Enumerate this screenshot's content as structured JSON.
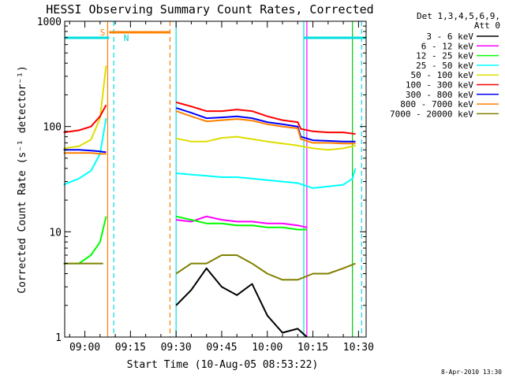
{
  "chart_data": {
    "type": "line",
    "title": "HESSI Observing Summary Count Rates, Corrected",
    "xlabel": "Start Time (10-Aug-05 08:53:22)",
    "ylabel": "Corrected Count Rate (s⁻¹ detector⁻¹)",
    "y_scale": "log",
    "ylim": [
      1,
      1000
    ],
    "xlim": [
      "08:53:22",
      "10:32:30"
    ],
    "x_ticks": [
      "09:00",
      "09:15",
      "09:30",
      "09:45",
      "10:00",
      "10:15",
      "10:30"
    ],
    "y_ticks": [
      "1",
      "10",
      "100",
      "1000"
    ],
    "legend": {
      "placement": "outside-right",
      "header": [
        "Det 1,3,4,5,6,9,",
        "Att 0"
      ]
    },
    "series": [
      {
        "name": "3 - 6 keV",
        "color": "#000000",
        "x": [
          "08:53",
          "09:06",
          "09:30",
          "09:35",
          "09:40",
          "09:45",
          "09:50",
          "09:55",
          "10:00",
          "10:05",
          "10:10",
          "10:13"
        ],
        "values": [
          null,
          null,
          2.0,
          2.8,
          4.5,
          3.0,
          2.5,
          3.2,
          1.6,
          1.1,
          1.2,
          1.0
        ]
      },
      {
        "name": "6 - 12 keV",
        "color": "#ff00ff",
        "x": [
          "09:30",
          "09:35",
          "09:40",
          "09:45",
          "09:50",
          "09:55",
          "10:00",
          "10:05",
          "10:10",
          "10:13"
        ],
        "values": [
          13,
          12.5,
          14,
          13,
          12.5,
          12.5,
          12,
          12,
          11.5,
          11
        ]
      },
      {
        "name": "12 - 25 keV",
        "color": "#00ff00",
        "x": [
          "08:53",
          "08:58",
          "09:02",
          "09:05",
          "09:07",
          "09:30",
          "09:35",
          "09:40",
          "09:45",
          "09:50",
          "09:55",
          "10:00",
          "10:05",
          "10:10",
          "10:13"
        ],
        "values": [
          5,
          5,
          6,
          8,
          14,
          14,
          13,
          12,
          12,
          11.5,
          11.5,
          11,
          11,
          10.5,
          10.5
        ]
      },
      {
        "name": "25 - 50 keV",
        "color": "#00ffff",
        "x": [
          "08:53",
          "08:58",
          "09:02",
          "09:05",
          "09:07",
          "09:30",
          "09:35",
          "09:40",
          "09:45",
          "09:50",
          "09:55",
          "10:00",
          "10:05",
          "10:10",
          "10:15",
          "10:20",
          "10:25",
          "10:28",
          "10:29"
        ],
        "values": [
          28,
          32,
          38,
          55,
          120,
          36,
          35,
          34,
          33,
          33,
          32,
          31,
          30,
          29,
          26,
          27,
          28,
          32,
          40
        ]
      },
      {
        "name": "50 - 100 keV",
        "color": "#dddd00",
        "x": [
          "08:53",
          "08:58",
          "09:02",
          "09:05",
          "09:07",
          "09:30",
          "09:35",
          "09:40",
          "09:45",
          "09:50",
          "09:55",
          "10:00",
          "10:05",
          "10:10",
          "10:15",
          "10:20",
          "10:25",
          "10:29"
        ],
        "values": [
          62,
          65,
          75,
          120,
          380,
          77,
          72,
          72,
          78,
          80,
          76,
          72,
          69,
          66,
          62,
          60,
          62,
          66
        ]
      },
      {
        "name": "100 - 300 keV",
        "color": "#ff0000",
        "x": [
          "08:53",
          "08:58",
          "09:02",
          "09:05",
          "09:07",
          "09:30",
          "09:35",
          "09:40",
          "09:45",
          "09:50",
          "09:55",
          "10:00",
          "10:05",
          "10:10",
          "10:11",
          "10:15",
          "10:20",
          "10:25",
          "10:29"
        ],
        "values": [
          88,
          92,
          100,
          125,
          160,
          170,
          155,
          140,
          140,
          145,
          140,
          125,
          115,
          110,
          95,
          90,
          88,
          88,
          85
        ]
      },
      {
        "name": "300 - 800 keV",
        "color": "#0000ff",
        "x": [
          "08:53",
          "08:58",
          "09:02",
          "09:05",
          "09:07",
          "09:30",
          "09:35",
          "09:40",
          "09:45",
          "09:50",
          "09:55",
          "10:00",
          "10:05",
          "10:10",
          "10:11",
          "10:15",
          "10:20",
          "10:25",
          "10:29"
        ],
        "values": [
          60,
          60,
          59,
          58,
          57,
          150,
          135,
          120,
          122,
          125,
          120,
          110,
          105,
          100,
          80,
          74,
          73,
          72,
          72
        ]
      },
      {
        "name": "800 - 7000 keV",
        "color": "#ff8000",
        "x": [
          "08:53",
          "08:58",
          "09:02",
          "09:05",
          "09:07",
          "09:30",
          "09:35",
          "09:40",
          "09:45",
          "09:50",
          "09:55",
          "10:00",
          "10:05",
          "10:10",
          "10:11",
          "10:15",
          "10:20",
          "10:25",
          "10:29"
        ],
        "values": [
          56,
          56,
          56,
          55,
          55,
          140,
          125,
          112,
          115,
          118,
          114,
          105,
          100,
          96,
          76,
          70,
          70,
          69,
          69
        ]
      },
      {
        "name": "7000 - 20000 keV",
        "color": "#808000",
        "x": [
          "08:53",
          "09:06",
          "09:30",
          "09:35",
          "09:40",
          "09:45",
          "09:50",
          "09:55",
          "10:00",
          "10:05",
          "10:10",
          "10:15",
          "10:20",
          "10:25",
          "10:29"
        ],
        "values": [
          5,
          5,
          4,
          5,
          5,
          6,
          6,
          5,
          4,
          3.5,
          3.5,
          4,
          4,
          4.5,
          5
        ]
      }
    ],
    "annotations": {
      "saa_bar_label": "S",
      "night_bar_label": "N"
    }
  },
  "footer": {
    "date_stamp": "8-Apr-2010 13:30"
  }
}
